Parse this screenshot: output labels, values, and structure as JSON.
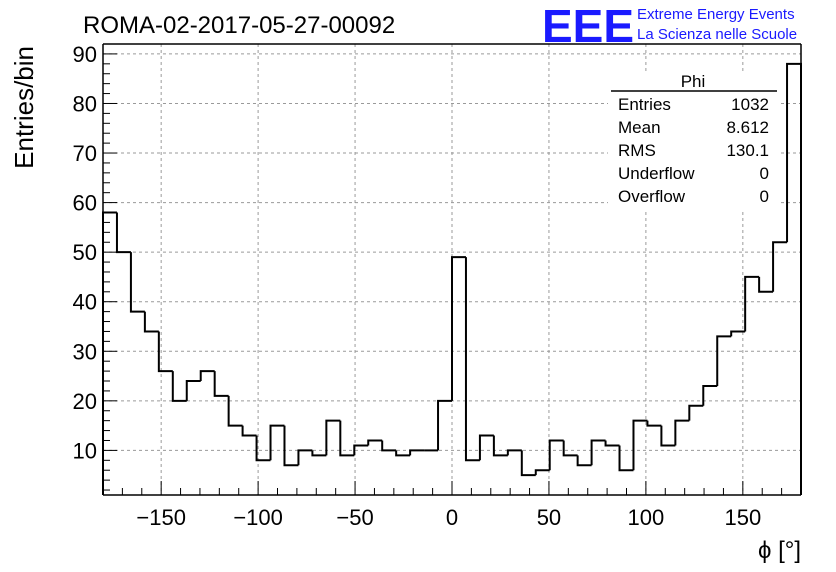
{
  "header": {
    "run_title": "ROMA-02-2017-05-27-00092",
    "logo": {
      "mark": "EEE",
      "line1": "Extreme Energy Events",
      "line2": "La Scienza nelle Scuole",
      "color": "#1a1aff"
    }
  },
  "stats": {
    "title": "Phi",
    "rows": [
      {
        "label": "Entries",
        "value": "1032"
      },
      {
        "label": "Mean",
        "value": "8.612"
      },
      {
        "label": "RMS",
        "value": "130.1"
      },
      {
        "label": "Underflow",
        "value": "0"
      },
      {
        "label": "Overflow",
        "value": "0"
      }
    ]
  },
  "chart_data": {
    "type": "histogram",
    "title": "ROMA-02-2017-05-27-00092",
    "xlabel": "ϕ [°]",
    "ylabel": "Entries/bin",
    "xlim": [
      -180,
      180
    ],
    "ylim": [
      1,
      92
    ],
    "xticks": [
      -150,
      -100,
      -50,
      0,
      50,
      100,
      150
    ],
    "yticks": [
      10,
      20,
      30,
      40,
      50,
      60,
      70,
      80,
      90
    ],
    "grid": true,
    "line_color": "#000000",
    "bin_width": 7.2,
    "bin_edges_start": -180,
    "values": [
      58,
      50,
      38,
      34,
      26,
      20,
      24,
      26,
      21,
      15,
      13,
      8,
      15,
      7,
      10,
      9,
      16,
      9,
      11,
      12,
      10,
      9,
      10,
      10,
      20,
      49,
      8,
      13,
      9,
      10,
      5,
      6,
      12,
      9,
      7,
      12,
      11,
      6,
      16,
      15,
      11,
      16,
      19,
      23,
      33,
      34,
      45,
      42,
      52,
      88
    ]
  }
}
